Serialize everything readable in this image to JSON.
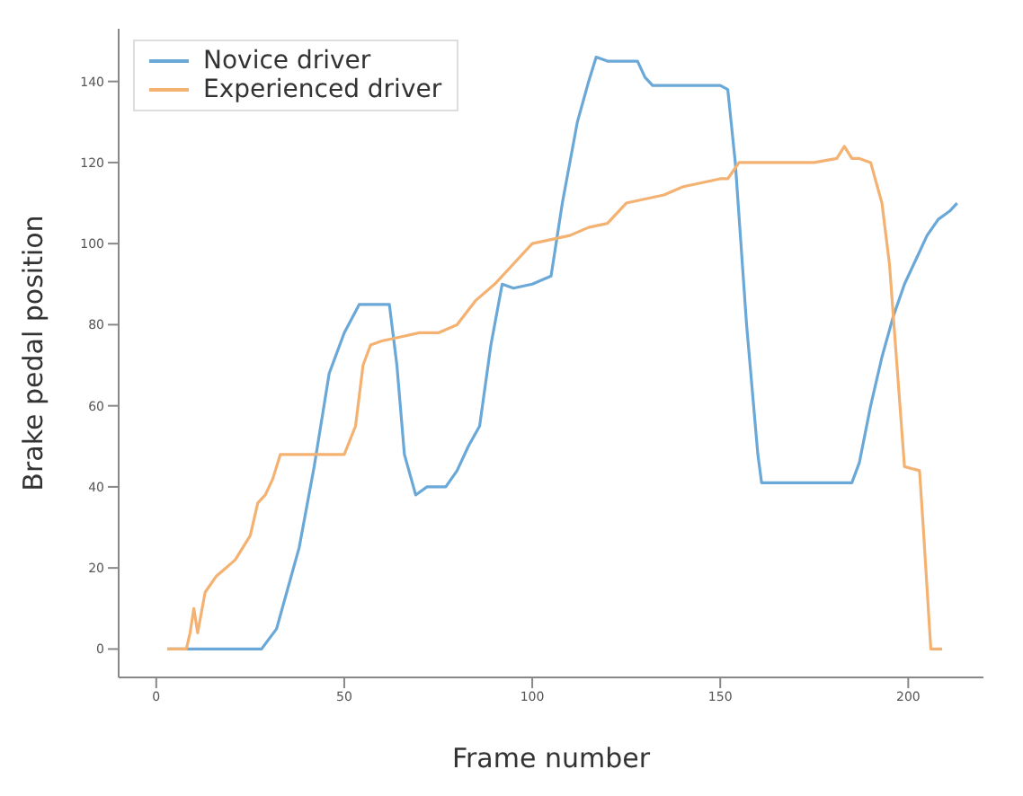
{
  "chart_data": {
    "type": "line",
    "xlabel": "Frame number",
    "ylabel": "Brake pedal position",
    "xlim": [
      -10,
      220
    ],
    "ylim": [
      -7,
      153
    ],
    "xticks": [
      0,
      50,
      100,
      150,
      200
    ],
    "yticks": [
      0,
      20,
      40,
      60,
      80,
      100,
      120,
      140
    ],
    "legend": "top left",
    "grid": false,
    "marker": "none",
    "line_style": "solid",
    "series": [
      {
        "name": "Novice driver",
        "color": "#6aa8d8",
        "x": [
          3,
          10,
          20,
          28,
          32,
          35,
          38,
          42,
          46,
          50,
          54,
          56,
          62,
          64,
          66,
          69,
          72,
          77,
          80,
          83,
          86,
          89,
          92,
          95,
          100,
          105,
          108,
          112,
          115,
          117,
          120,
          128,
          130,
          132,
          140,
          150,
          152,
          154,
          157,
          160,
          161,
          170,
          180,
          185,
          187,
          190,
          193,
          196,
          199,
          202,
          205,
          208,
          211,
          213
        ],
        "values": [
          0,
          0,
          0,
          0,
          5,
          15,
          25,
          45,
          68,
          78,
          85,
          85,
          85,
          70,
          48,
          38,
          40,
          40,
          44,
          50,
          55,
          75,
          90,
          89,
          90,
          92,
          110,
          130,
          140,
          146,
          145,
          145,
          141,
          139,
          139,
          139,
          138,
          120,
          80,
          48,
          41,
          41,
          41,
          41,
          46,
          60,
          72,
          82,
          90,
          96,
          102,
          106,
          108,
          110
        ]
      },
      {
        "name": "Experienced driver",
        "color": "#f4b272",
        "x": [
          3,
          6,
          8,
          9,
          10,
          11,
          13,
          16,
          21,
          25,
          27,
          29,
          31,
          33,
          35,
          40,
          50,
          53,
          55,
          57,
          60,
          65,
          70,
          75,
          80,
          85,
          90,
          95,
          100,
          105,
          110,
          115,
          120,
          125,
          130,
          135,
          140,
          145,
          150,
          152,
          155,
          165,
          175,
          181,
          183,
          185,
          187,
          190,
          193,
          195,
          197,
          199,
          203,
          204,
          206,
          209
        ],
        "values": [
          0,
          0,
          0,
          4,
          10,
          4,
          14,
          18,
          22,
          28,
          36,
          38,
          42,
          48,
          48,
          48,
          48,
          55,
          70,
          75,
          76,
          77,
          78,
          78,
          80,
          86,
          90,
          95,
          100,
          101,
          102,
          104,
          105,
          110,
          111,
          112,
          114,
          115,
          116,
          116,
          120,
          120,
          120,
          121,
          124,
          121,
          121,
          120,
          110,
          95,
          70,
          45,
          44,
          30,
          0,
          0
        ]
      }
    ]
  }
}
